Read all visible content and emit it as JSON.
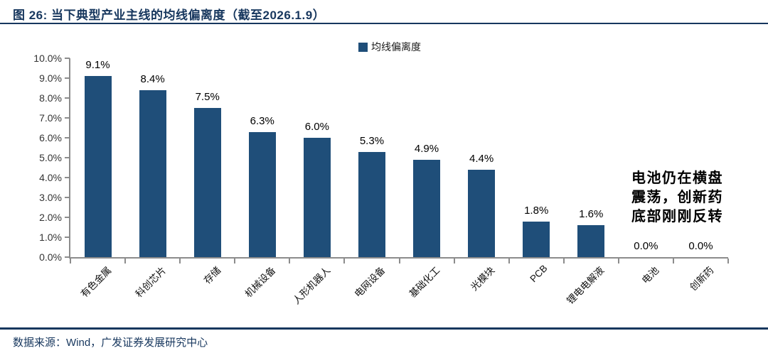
{
  "page": {
    "title": "图 26:  当下典型产业主线的均线偏离度（截至2026.1.9）",
    "footer": "数据来源：Wind，广发证券发展研究中心"
  },
  "colors": {
    "bar": "#1F4E79",
    "navy": "#17375E",
    "axis": "#8C8C8C",
    "ink": "#000000"
  },
  "annotation": {
    "text": "电池仍在横盘\n震荡，创新药\n底部刚刚反转"
  },
  "chart_data": {
    "type": "bar",
    "title": "当下典型产业主线的均线偏离度（截至2026.1.9）",
    "legend": [
      "均线偏离度"
    ],
    "legend_position": "top-center",
    "categories": [
      "有色金属",
      "科创芯片",
      "存储",
      "机械设备",
      "人形机器人",
      "电网设备",
      "基础化工",
      "光模块",
      "PCB",
      "锂电电解液",
      "电池",
      "创新药"
    ],
    "values": [
      9.1,
      8.4,
      7.5,
      6.3,
      6.0,
      5.3,
      4.9,
      4.4,
      1.8,
      1.6,
      0.0,
      0.0
    ],
    "value_labels": [
      "9.1%",
      "8.4%",
      "7.5%",
      "6.3%",
      "6.0%",
      "5.3%",
      "4.9%",
      "4.4%",
      "1.8%",
      "1.6%",
      "0.0%",
      "0.0%"
    ],
    "yticks": [
      "10.0%",
      "9.0%",
      "8.0%",
      "7.0%",
      "6.0%",
      "5.0%",
      "4.0%",
      "3.0%",
      "2.0%",
      "1.0%",
      "0.0%"
    ],
    "ylim": [
      0,
      10
    ],
    "xlabel": "",
    "ylabel": "",
    "grid": false
  }
}
